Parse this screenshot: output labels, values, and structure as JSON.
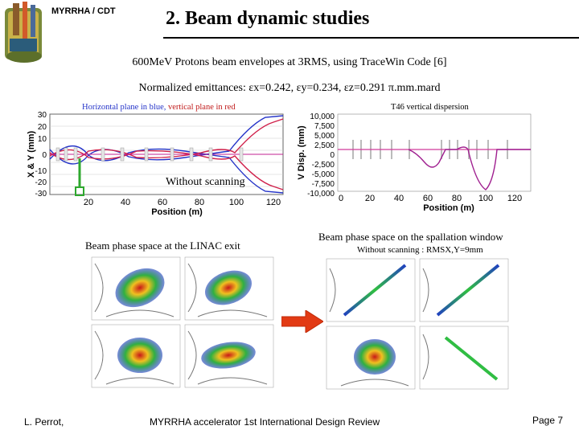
{
  "header": {
    "org": "MYRRHA / CDT",
    "title": "2. Beam dynamic studies"
  },
  "intro": {
    "line1": "600MeV Protons beam envelopes at 3RMS, using TraceWin Code [6]",
    "line2": "Normalized emittances: εx=0.242, εy=0.234, εz=0.291 π.mm.mard"
  },
  "envelope_plot": {
    "legend_prefix": "Horizontal plane in blue,",
    "legend_red": "vertical plane in red",
    "ylabel": "X & Y (mm)",
    "xlabel": "Position (m)",
    "yticks": [
      "30",
      "20",
      "10",
      "0",
      "-10",
      "-20",
      "-30"
    ],
    "xticks": [
      "20",
      "40",
      "60",
      "80",
      "100",
      "120"
    ],
    "colors": {
      "horizontal": "#2433c8",
      "vertical": "#d0204a"
    }
  },
  "dispersion_plot": {
    "title": "T46 vertical dispersion",
    "ylabel": "V Disp. (mm)",
    "xlabel": "Position (m)",
    "yticks": [
      "10,000",
      "7,500",
      "5,000",
      "2,500",
      "0",
      "-2,500",
      "-5,000",
      "-7,500",
      "-10,000"
    ],
    "xticks": [
      "0",
      "20",
      "40",
      "60",
      "80",
      "100",
      "120"
    ]
  },
  "scan_label": "Without scanning",
  "linac_exit_caption": "Beam phase space at the LINAC exit",
  "spallation_caption": "Beam phase space on the spallation window",
  "spallation_sub": "Without scanning : RMSX,Y=9mm",
  "footer": {
    "author": "L. Perrot,",
    "event": "MYRRHA accelerator 1st International Design Review",
    "page": "Page 7"
  }
}
